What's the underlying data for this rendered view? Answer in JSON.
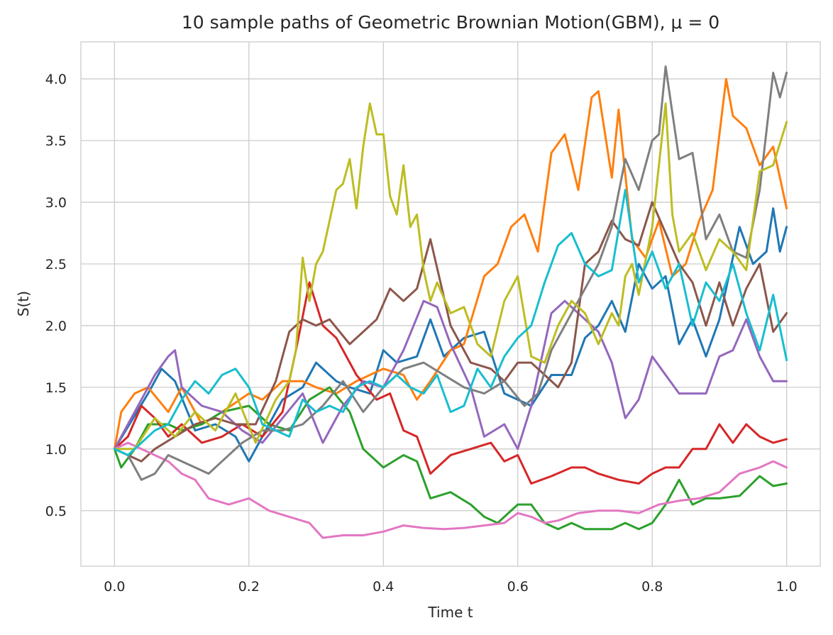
{
  "chart_data": {
    "type": "line",
    "title": "10 sample paths of Geometric Brownian Motion(GBM), μ = 0",
    "xlabel": "Time t",
    "ylabel": "S(t)",
    "xlim": [
      -0.05,
      1.05
    ],
    "ylim": [
      0.05,
      4.3
    ],
    "x_ticks": [
      0.0,
      0.2,
      0.4,
      0.6,
      0.8,
      1.0
    ],
    "x_tick_labels": [
      "0.0",
      "0.2",
      "0.4",
      "0.6",
      "0.8",
      "1.0"
    ],
    "y_ticks": [
      0.5,
      1.0,
      1.5,
      2.0,
      2.5,
      3.0,
      3.5,
      4.0
    ],
    "y_tick_labels": [
      "0.5",
      "1.0",
      "1.5",
      "2.0",
      "2.5",
      "3.0",
      "3.5",
      "4.0"
    ],
    "grid": true,
    "legend": "none",
    "series": [
      {
        "color": "#1f77b4",
        "x": [
          0,
          0.05,
          0.07,
          0.09,
          0.12,
          0.15,
          0.18,
          0.2,
          0.23,
          0.25,
          0.28,
          0.3,
          0.33,
          0.35,
          0.38,
          0.4,
          0.42,
          0.45,
          0.47,
          0.49,
          0.52,
          0.55,
          0.58,
          0.6,
          0.62,
          0.65,
          0.68,
          0.7,
          0.72,
          0.74,
          0.76,
          0.78,
          0.8,
          0.82,
          0.84,
          0.86,
          0.88,
          0.9,
          0.93,
          0.95,
          0.97,
          0.98,
          0.99,
          1.0
        ],
        "y": [
          1.0,
          1.45,
          1.65,
          1.55,
          1.15,
          1.2,
          1.1,
          0.9,
          1.2,
          1.4,
          1.5,
          1.7,
          1.55,
          1.5,
          1.45,
          1.8,
          1.7,
          1.75,
          2.05,
          1.75,
          1.9,
          1.95,
          1.45,
          1.4,
          1.35,
          1.6,
          1.6,
          1.9,
          2.0,
          2.2,
          1.95,
          2.5,
          2.3,
          2.4,
          1.85,
          2.05,
          1.75,
          2.05,
          2.8,
          2.5,
          2.6,
          2.95,
          2.6,
          2.8
        ]
      },
      {
        "color": "#ff7f0e",
        "x": [
          0,
          0.01,
          0.03,
          0.05,
          0.08,
          0.1,
          0.13,
          0.16,
          0.2,
          0.22,
          0.25,
          0.28,
          0.3,
          0.33,
          0.36,
          0.4,
          0.43,
          0.45,
          0.47,
          0.5,
          0.52,
          0.55,
          0.57,
          0.59,
          0.61,
          0.63,
          0.65,
          0.67,
          0.69,
          0.71,
          0.72,
          0.74,
          0.75,
          0.77,
          0.79,
          0.81,
          0.83,
          0.85,
          0.87,
          0.89,
          0.91,
          0.92,
          0.94,
          0.96,
          0.98,
          0.99,
          1.0
        ],
        "y": [
          1.0,
          1.3,
          1.45,
          1.5,
          1.3,
          1.5,
          1.2,
          1.3,
          1.45,
          1.4,
          1.55,
          1.55,
          1.5,
          1.45,
          1.55,
          1.65,
          1.6,
          1.4,
          1.55,
          1.8,
          1.85,
          2.4,
          2.5,
          2.8,
          2.9,
          2.6,
          3.4,
          3.55,
          3.1,
          3.85,
          3.9,
          3.2,
          3.75,
          2.7,
          2.55,
          2.85,
          2.4,
          2.5,
          2.85,
          3.1,
          4.0,
          3.7,
          3.6,
          3.3,
          3.45,
          3.2,
          2.95
        ]
      },
      {
        "color": "#2ca02c",
        "x": [
          0,
          0.01,
          0.03,
          0.05,
          0.08,
          0.1,
          0.13,
          0.16,
          0.2,
          0.23,
          0.26,
          0.29,
          0.32,
          0.35,
          0.37,
          0.4,
          0.43,
          0.45,
          0.47,
          0.5,
          0.53,
          0.55,
          0.57,
          0.6,
          0.62,
          0.64,
          0.66,
          0.68,
          0.7,
          0.72,
          0.74,
          0.76,
          0.78,
          0.8,
          0.82,
          0.84,
          0.86,
          0.88,
          0.9,
          0.93,
          0.96,
          0.98,
          1.0
        ],
        "y": [
          1.0,
          0.85,
          1.0,
          1.2,
          1.2,
          1.15,
          1.2,
          1.3,
          1.35,
          1.2,
          1.15,
          1.4,
          1.5,
          1.3,
          1.0,
          0.85,
          0.95,
          0.9,
          0.6,
          0.65,
          0.55,
          0.45,
          0.4,
          0.55,
          0.55,
          0.4,
          0.35,
          0.4,
          0.35,
          0.35,
          0.35,
          0.4,
          0.35,
          0.4,
          0.55,
          0.75,
          0.55,
          0.6,
          0.6,
          0.62,
          0.78,
          0.7,
          0.72
        ]
      },
      {
        "color": "#d62728",
        "x": [
          0,
          0.02,
          0.04,
          0.06,
          0.08,
          0.1,
          0.13,
          0.16,
          0.19,
          0.22,
          0.25,
          0.27,
          0.29,
          0.31,
          0.33,
          0.36,
          0.39,
          0.41,
          0.43,
          0.45,
          0.47,
          0.5,
          0.53,
          0.56,
          0.58,
          0.6,
          0.62,
          0.65,
          0.68,
          0.7,
          0.72,
          0.75,
          0.78,
          0.8,
          0.82,
          0.84,
          0.86,
          0.88,
          0.9,
          0.92,
          0.94,
          0.96,
          0.98,
          1.0
        ],
        "y": [
          1.0,
          1.1,
          1.35,
          1.25,
          1.1,
          1.2,
          1.05,
          1.1,
          1.2,
          1.1,
          1.3,
          1.8,
          2.35,
          2.0,
          1.9,
          1.6,
          1.4,
          1.45,
          1.15,
          1.1,
          0.8,
          0.95,
          1.0,
          1.05,
          0.9,
          0.95,
          0.72,
          0.78,
          0.85,
          0.85,
          0.8,
          0.75,
          0.72,
          0.8,
          0.85,
          0.85,
          1.0,
          1.0,
          1.2,
          1.05,
          1.2,
          1.1,
          1.05,
          1.08
        ]
      },
      {
        "color": "#9467bd",
        "x": [
          0,
          0.02,
          0.04,
          0.06,
          0.08,
          0.09,
          0.1,
          0.13,
          0.16,
          0.19,
          0.22,
          0.25,
          0.28,
          0.31,
          0.34,
          0.37,
          0.4,
          0.43,
          0.46,
          0.48,
          0.5,
          0.53,
          0.55,
          0.58,
          0.6,
          0.62,
          0.65,
          0.67,
          0.7,
          0.72,
          0.74,
          0.76,
          0.78,
          0.8,
          0.82,
          0.84,
          0.86,
          0.88,
          0.9,
          0.92,
          0.94,
          0.96,
          0.98,
          1.0
        ],
        "y": [
          1.0,
          1.2,
          1.4,
          1.6,
          1.75,
          1.8,
          1.5,
          1.35,
          1.3,
          1.15,
          1.05,
          1.25,
          1.45,
          1.05,
          1.35,
          1.55,
          1.5,
          1.8,
          2.2,
          2.15,
          1.85,
          1.5,
          1.1,
          1.2,
          1.0,
          1.35,
          2.1,
          2.2,
          2.05,
          1.95,
          1.7,
          1.25,
          1.4,
          1.75,
          1.6,
          1.45,
          1.45,
          1.45,
          1.75,
          1.8,
          2.05,
          1.75,
          1.55,
          1.55
        ]
      },
      {
        "color": "#8c564b",
        "x": [
          0,
          0.02,
          0.04,
          0.06,
          0.09,
          0.12,
          0.15,
          0.18,
          0.21,
          0.24,
          0.26,
          0.28,
          0.3,
          0.32,
          0.35,
          0.37,
          0.39,
          0.41,
          0.43,
          0.45,
          0.47,
          0.5,
          0.53,
          0.56,
          0.58,
          0.6,
          0.62,
          0.64,
          0.66,
          0.68,
          0.7,
          0.72,
          0.74,
          0.76,
          0.78,
          0.8,
          0.82,
          0.84,
          0.86,
          0.88,
          0.9,
          0.92,
          0.94,
          0.96,
          0.98,
          1.0
        ],
        "y": [
          1.0,
          0.95,
          0.9,
          1.0,
          1.1,
          1.2,
          1.25,
          1.2,
          1.2,
          1.55,
          1.95,
          2.05,
          2.0,
          2.05,
          1.85,
          1.95,
          2.05,
          2.3,
          2.2,
          2.3,
          2.7,
          2.0,
          1.7,
          1.65,
          1.55,
          1.7,
          1.7,
          1.6,
          1.5,
          1.7,
          2.5,
          2.6,
          2.85,
          2.7,
          2.65,
          3.0,
          2.75,
          2.5,
          2.35,
          2.0,
          2.35,
          2.0,
          2.3,
          2.5,
          1.95,
          2.1
        ]
      },
      {
        "color": "#e377c2",
        "x": [
          0,
          0.02,
          0.04,
          0.06,
          0.08,
          0.1,
          0.12,
          0.14,
          0.17,
          0.2,
          0.23,
          0.26,
          0.29,
          0.31,
          0.34,
          0.37,
          0.4,
          0.43,
          0.46,
          0.49,
          0.52,
          0.55,
          0.58,
          0.6,
          0.62,
          0.64,
          0.66,
          0.69,
          0.72,
          0.75,
          0.78,
          0.81,
          0.84,
          0.87,
          0.9,
          0.93,
          0.96,
          0.98,
          1.0
        ],
        "y": [
          1.0,
          1.05,
          1.0,
          0.95,
          0.9,
          0.8,
          0.75,
          0.6,
          0.55,
          0.6,
          0.5,
          0.45,
          0.4,
          0.28,
          0.3,
          0.3,
          0.33,
          0.38,
          0.36,
          0.35,
          0.36,
          0.38,
          0.4,
          0.48,
          0.45,
          0.4,
          0.42,
          0.48,
          0.5,
          0.5,
          0.48,
          0.55,
          0.58,
          0.6,
          0.65,
          0.8,
          0.85,
          0.9,
          0.85
        ]
      },
      {
        "color": "#7f7f7f",
        "x": [
          0,
          0.02,
          0.04,
          0.06,
          0.08,
          0.1,
          0.12,
          0.14,
          0.16,
          0.19,
          0.22,
          0.25,
          0.28,
          0.31,
          0.34,
          0.37,
          0.4,
          0.43,
          0.46,
          0.49,
          0.52,
          0.55,
          0.58,
          0.61,
          0.63,
          0.65,
          0.68,
          0.7,
          0.72,
          0.74,
          0.76,
          0.78,
          0.8,
          0.81,
          0.82,
          0.84,
          0.86,
          0.88,
          0.9,
          0.92,
          0.94,
          0.96,
          0.98,
          0.99,
          1.0
        ],
        "y": [
          1.0,
          0.95,
          0.75,
          0.8,
          0.95,
          0.9,
          0.85,
          0.8,
          0.9,
          1.05,
          1.15,
          1.15,
          1.2,
          1.35,
          1.55,
          1.3,
          1.5,
          1.65,
          1.7,
          1.6,
          1.5,
          1.45,
          1.55,
          1.35,
          1.45,
          1.8,
          2.1,
          2.3,
          2.5,
          2.8,
          3.35,
          3.1,
          3.5,
          3.55,
          4.1,
          3.35,
          3.4,
          2.7,
          2.9,
          2.6,
          2.55,
          3.1,
          4.05,
          3.85,
          4.05
        ]
      },
      {
        "color": "#bcbd22",
        "x": [
          0,
          0.03,
          0.06,
          0.09,
          0.12,
          0.15,
          0.18,
          0.21,
          0.24,
          0.26,
          0.27,
          0.28,
          0.29,
          0.3,
          0.31,
          0.32,
          0.33,
          0.34,
          0.35,
          0.36,
          0.37,
          0.38,
          0.39,
          0.4,
          0.41,
          0.42,
          0.43,
          0.44,
          0.45,
          0.46,
          0.47,
          0.48,
          0.5,
          0.52,
          0.54,
          0.56,
          0.58,
          0.6,
          0.62,
          0.64,
          0.66,
          0.68,
          0.7,
          0.72,
          0.74,
          0.75,
          0.76,
          0.77,
          0.78,
          0.8,
          0.82,
          0.83,
          0.84,
          0.86,
          0.88,
          0.9,
          0.92,
          0.94,
          0.96,
          0.98,
          1.0
        ],
        "y": [
          1.0,
          1.0,
          1.25,
          1.1,
          1.3,
          1.15,
          1.45,
          1.05,
          1.4,
          1.55,
          1.8,
          2.55,
          2.2,
          2.5,
          2.6,
          2.85,
          3.1,
          3.15,
          3.35,
          2.95,
          3.45,
          3.8,
          3.55,
          3.55,
          3.05,
          2.9,
          3.3,
          2.8,
          2.9,
          2.45,
          2.2,
          2.35,
          2.1,
          2.15,
          1.85,
          1.75,
          2.2,
          2.4,
          1.75,
          1.7,
          2.0,
          2.2,
          2.1,
          1.85,
          2.1,
          2.0,
          2.4,
          2.5,
          2.25,
          2.8,
          3.8,
          2.9,
          2.6,
          2.75,
          2.45,
          2.7,
          2.6,
          2.45,
          3.25,
          3.3,
          3.65
        ]
      },
      {
        "color": "#17becf",
        "x": [
          0,
          0.02,
          0.04,
          0.06,
          0.08,
          0.1,
          0.12,
          0.14,
          0.16,
          0.18,
          0.2,
          0.22,
          0.24,
          0.26,
          0.28,
          0.3,
          0.32,
          0.34,
          0.36,
          0.38,
          0.4,
          0.42,
          0.44,
          0.46,
          0.48,
          0.5,
          0.52,
          0.54,
          0.56,
          0.58,
          0.6,
          0.62,
          0.64,
          0.66,
          0.68,
          0.7,
          0.72,
          0.74,
          0.76,
          0.78,
          0.8,
          0.82,
          0.84,
          0.86,
          0.88,
          0.9,
          0.92,
          0.94,
          0.96,
          0.98,
          1.0
        ],
        "y": [
          1.0,
          0.95,
          1.05,
          1.15,
          1.2,
          1.4,
          1.55,
          1.45,
          1.6,
          1.65,
          1.5,
          1.2,
          1.15,
          1.1,
          1.4,
          1.3,
          1.35,
          1.3,
          1.5,
          1.55,
          1.5,
          1.6,
          1.5,
          1.45,
          1.6,
          1.3,
          1.35,
          1.65,
          1.5,
          1.75,
          1.9,
          2.0,
          2.35,
          2.65,
          2.75,
          2.5,
          2.4,
          2.45,
          3.1,
          2.35,
          2.6,
          2.3,
          2.5,
          2.0,
          2.35,
          2.2,
          2.5,
          2.1,
          1.8,
          2.25,
          1.72
        ]
      }
    ]
  }
}
